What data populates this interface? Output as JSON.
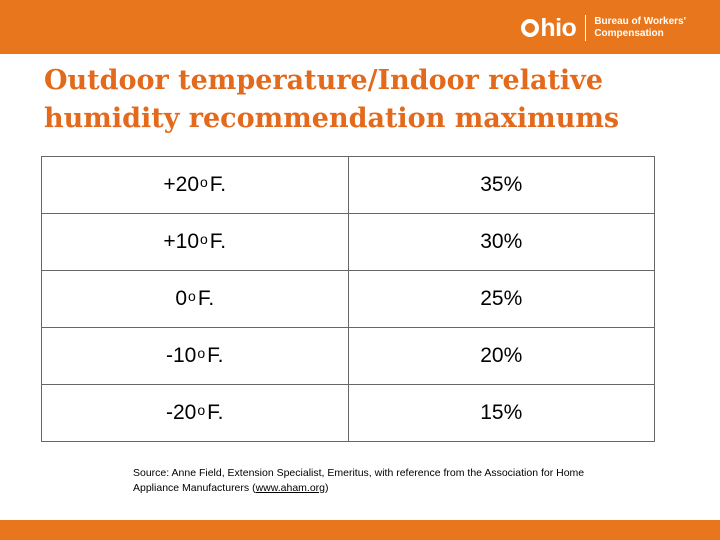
{
  "header": {
    "logo_text": "hio",
    "agency_line1": "Bureau of Workers'",
    "agency_line2": "Compensation",
    "accent_color": "#E8761C"
  },
  "title": "Outdoor temperature/Indoor relative humidity recommendation maximums",
  "table": {
    "rows": [
      {
        "temp_prefix": "+20",
        "degree": "o",
        "temp_unit": "F.",
        "humidity": "35%"
      },
      {
        "temp_prefix": "+10",
        "degree": "o",
        "temp_unit": "F.",
        "humidity": "30%"
      },
      {
        "temp_prefix": "0",
        "degree": "o",
        "temp_unit": "F.",
        "humidity": "25%"
      },
      {
        "temp_prefix": "-10",
        "degree": "o",
        "temp_unit": "F.",
        "humidity": "20%"
      },
      {
        "temp_prefix": "-20",
        "degree": "o",
        "temp_unit": "F.",
        "humidity": "15%"
      }
    ]
  },
  "source": {
    "text_before": "Source: Anne Field, Extension Specialist, Emeritus, with reference from the Association for Home Appliance Manufacturers (",
    "link_text": "www.aham.org",
    "text_after": ")"
  }
}
